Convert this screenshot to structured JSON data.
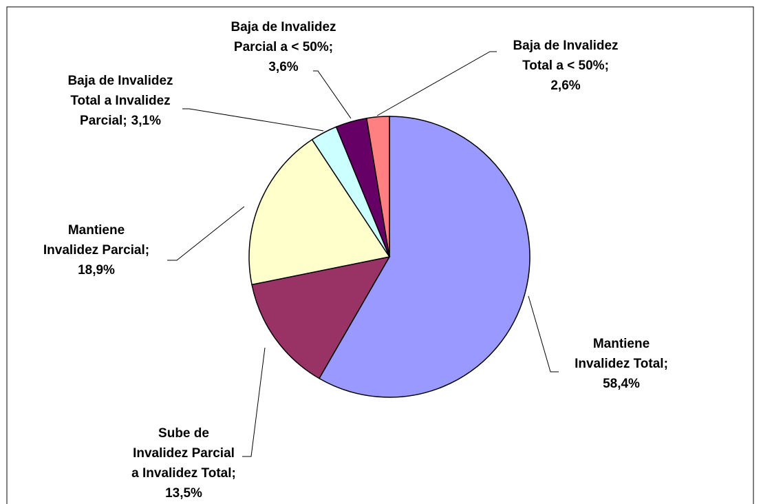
{
  "chart_data": {
    "type": "pie",
    "categories": [
      "Mantiene Invalidez Total;",
      "Sube de Invalidez Parcial a Invalidez Total;",
      "Mantiene Invalidez Parcial;",
      "Baja de Invalidez Total a Invalidez Parcial;",
      "Baja de Invalidez Parcial a < 50%;",
      "Baja de Invalidez Total a < 50%;"
    ],
    "values": [
      58.4,
      13.5,
      18.9,
      3.1,
      3.6,
      2.6
    ],
    "value_labels": [
      "58,4%",
      "13,5%",
      "18,9%",
      "3,1%",
      "3,6%",
      "2,6%"
    ],
    "colors": [
      "#9999ff",
      "#993366",
      "#ffffcc",
      "#ccffff",
      "#660066",
      "#ff8080"
    ]
  }
}
